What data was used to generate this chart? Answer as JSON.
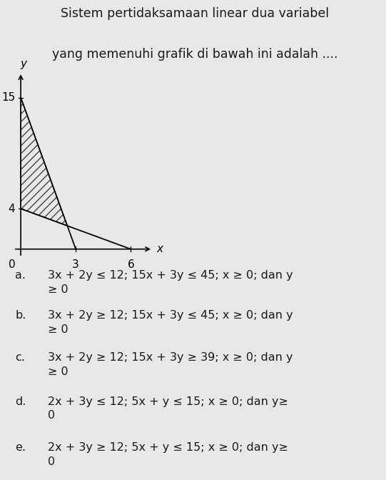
{
  "title_line1": "Sistem pertidaksamaan linear dua variabel",
  "title_line2": "yang memenuhi grafik di bawah ini adalah ....",
  "graph": {
    "xlim": [
      -0.5,
      7.5
    ],
    "ylim": [
      -1.0,
      18.0
    ],
    "xlabel": "x",
    "ylabel": "y",
    "line1_pts": [
      [
        0,
        4
      ],
      [
        6,
        0
      ]
    ],
    "line2_pts": [
      [
        0,
        15
      ],
      [
        3,
        0
      ]
    ],
    "x_int2": 2.538461538,
    "y_int2": 2.307692308,
    "hatch": "///",
    "hatch_color": "#444444"
  },
  "options": [
    {
      "label": "a.",
      "text": "3x + 2y ≤ 12; 15x + 3y ≤ 45; x ≥ 0; dan y\n≥ 0"
    },
    {
      "label": "b.",
      "text": "3x + 2y ≥ 12; 15x + 3y ≤ 45; x ≥ 0; dan y\n≥ 0"
    },
    {
      "label": "c.",
      "text": "3x + 2y ≥ 12; 15x + 3y ≥ 39; x ≥ 0; dan y\n≥ 0"
    },
    {
      "label": "d.",
      "text": "2x + 3y ≤ 12; 5x + y ≤ 15; x ≥ 0; dan y≥\n0"
    },
    {
      "label": "e.",
      "text": "2x + 3y ≥ 12; 5x + y ≤ 15; x ≥ 0; dan y≥\n0"
    }
  ],
  "bg_color": "#e8e8e8",
  "text_color": "#1a1a1a",
  "title_fontsize": 12.5,
  "option_fontsize": 11.5,
  "axis_label_fontsize": 11,
  "tick_fontsize": 11
}
